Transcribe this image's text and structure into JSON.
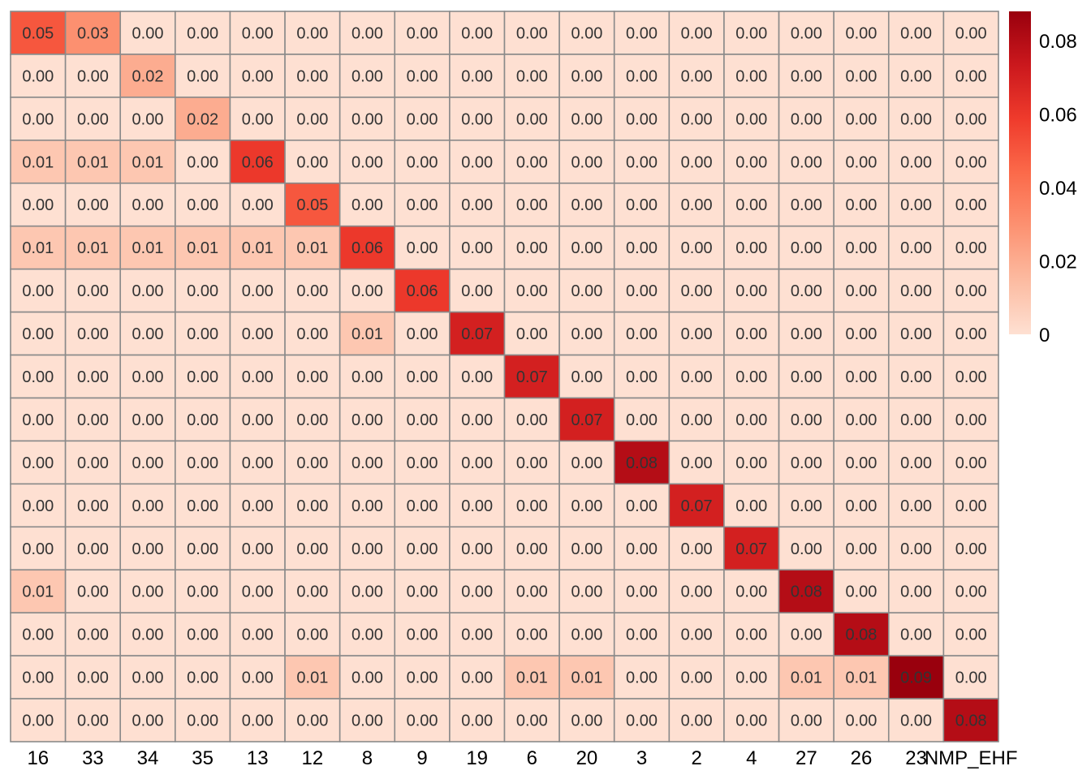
{
  "chart_data": {
    "type": "heatmap",
    "title": "",
    "xlabel": "",
    "ylabel": "",
    "x_categories": [
      "16",
      "33",
      "34",
      "35",
      "13",
      "12",
      "8",
      "9",
      "19",
      "6",
      "20",
      "3",
      "2",
      "4",
      "27",
      "26",
      "23",
      "NMP_EHF"
    ],
    "values": [
      [
        0.05,
        0.03,
        0.0,
        0.0,
        0.0,
        0.0,
        0.0,
        0.0,
        0.0,
        0.0,
        0.0,
        0.0,
        0.0,
        0.0,
        0.0,
        0.0,
        0.0,
        0.0
      ],
      [
        0.0,
        0.0,
        0.02,
        0.0,
        0.0,
        0.0,
        0.0,
        0.0,
        0.0,
        0.0,
        0.0,
        0.0,
        0.0,
        0.0,
        0.0,
        0.0,
        0.0,
        0.0
      ],
      [
        0.0,
        0.0,
        0.0,
        0.02,
        0.0,
        0.0,
        0.0,
        0.0,
        0.0,
        0.0,
        0.0,
        0.0,
        0.0,
        0.0,
        0.0,
        0.0,
        0.0,
        0.0
      ],
      [
        0.01,
        0.01,
        0.01,
        0.0,
        0.06,
        0.0,
        0.0,
        0.0,
        0.0,
        0.0,
        0.0,
        0.0,
        0.0,
        0.0,
        0.0,
        0.0,
        0.0,
        0.0
      ],
      [
        0.0,
        0.0,
        0.0,
        0.0,
        0.0,
        0.05,
        0.0,
        0.0,
        0.0,
        0.0,
        0.0,
        0.0,
        0.0,
        0.0,
        0.0,
        0.0,
        0.0,
        0.0
      ],
      [
        0.01,
        0.01,
        0.01,
        0.01,
        0.01,
        0.01,
        0.06,
        0.0,
        0.0,
        0.0,
        0.0,
        0.0,
        0.0,
        0.0,
        0.0,
        0.0,
        0.0,
        0.0
      ],
      [
        0.0,
        0.0,
        0.0,
        0.0,
        0.0,
        0.0,
        0.0,
        0.06,
        0.0,
        0.0,
        0.0,
        0.0,
        0.0,
        0.0,
        0.0,
        0.0,
        0.0,
        0.0
      ],
      [
        0.0,
        0.0,
        0.0,
        0.0,
        0.0,
        0.0,
        0.01,
        0.0,
        0.07,
        0.0,
        0.0,
        0.0,
        0.0,
        0.0,
        0.0,
        0.0,
        0.0,
        0.0
      ],
      [
        0.0,
        0.0,
        0.0,
        0.0,
        0.0,
        0.0,
        0.0,
        0.0,
        0.0,
        0.07,
        0.0,
        0.0,
        0.0,
        0.0,
        0.0,
        0.0,
        0.0,
        0.0
      ],
      [
        0.0,
        0.0,
        0.0,
        0.0,
        0.0,
        0.0,
        0.0,
        0.0,
        0.0,
        0.0,
        0.07,
        0.0,
        0.0,
        0.0,
        0.0,
        0.0,
        0.0,
        0.0
      ],
      [
        0.0,
        0.0,
        0.0,
        0.0,
        0.0,
        0.0,
        0.0,
        0.0,
        0.0,
        0.0,
        0.0,
        0.08,
        0.0,
        0.0,
        0.0,
        0.0,
        0.0,
        0.0
      ],
      [
        0.0,
        0.0,
        0.0,
        0.0,
        0.0,
        0.0,
        0.0,
        0.0,
        0.0,
        0.0,
        0.0,
        0.0,
        0.07,
        0.0,
        0.0,
        0.0,
        0.0,
        0.0
      ],
      [
        0.0,
        0.0,
        0.0,
        0.0,
        0.0,
        0.0,
        0.0,
        0.0,
        0.0,
        0.0,
        0.0,
        0.0,
        0.0,
        0.07,
        0.0,
        0.0,
        0.0,
        0.0
      ],
      [
        0.01,
        0.0,
        0.0,
        0.0,
        0.0,
        0.0,
        0.0,
        0.0,
        0.0,
        0.0,
        0.0,
        0.0,
        0.0,
        0.0,
        0.08,
        0.0,
        0.0,
        0.0
      ],
      [
        0.0,
        0.0,
        0.0,
        0.0,
        0.0,
        0.0,
        0.0,
        0.0,
        0.0,
        0.0,
        0.0,
        0.0,
        0.0,
        0.0,
        0.0,
        0.08,
        0.0,
        0.0
      ],
      [
        0.0,
        0.0,
        0.0,
        0.0,
        0.0,
        0.01,
        0.0,
        0.0,
        0.0,
        0.01,
        0.01,
        0.0,
        0.0,
        0.0,
        0.01,
        0.01,
        0.09,
        0.0
      ],
      [
        0.0,
        0.0,
        0.0,
        0.0,
        0.0,
        0.0,
        0.0,
        0.0,
        0.0,
        0.0,
        0.0,
        0.0,
        0.0,
        0.0,
        0.0,
        0.0,
        0.0,
        0.08
      ]
    ],
    "legend": {
      "placement": "right",
      "range": [
        0,
        0.088
      ],
      "ticks": [
        0,
        0.02,
        0.04,
        0.06,
        0.08
      ],
      "tick_labels": [
        "0",
        "0.02",
        "0.04",
        "0.06",
        "0.08"
      ],
      "color_stops": [
        "#fee0d2",
        "#fcbba1",
        "#fc9272",
        "#fb6a4a",
        "#ef3b2c",
        "#cb181d",
        "#99000d"
      ]
    },
    "cell_border_color": "#8a8a8a",
    "grid": false
  }
}
